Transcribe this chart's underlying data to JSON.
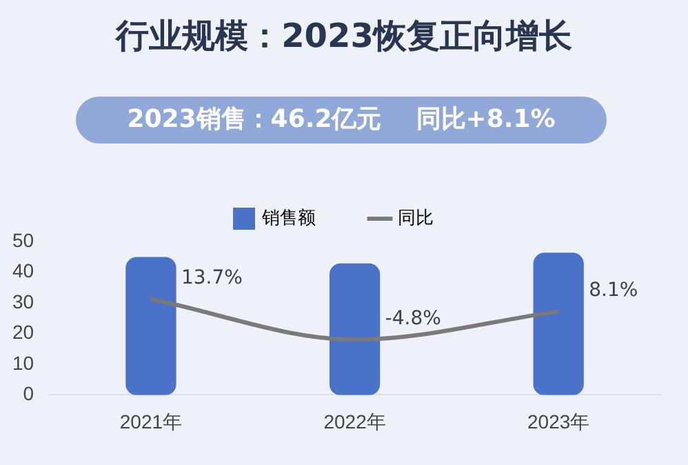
{
  "chart_data": {
    "type": "bar",
    "title": "行业规模：2023恢复正向增长",
    "subtitle": "2023销售：46.2亿元    同比+8.1%",
    "categories": [
      "2021年",
      "2022年",
      "2023年"
    ],
    "series": [
      {
        "name": "销售额",
        "color": "#4a72c9",
        "values": [
          44.8,
          42.7,
          46.2
        ]
      },
      {
        "name": "同比",
        "type": "line",
        "axis": "y2",
        "color": "#7a7a7a",
        "values": [
          13.7,
          -4.8,
          8.1
        ],
        "value_labels": [
          "13.7%",
          "-4.8%",
          "8.1%"
        ]
      }
    ],
    "ylim": [
      0,
      50
    ],
    "yticks": [
      0,
      10,
      20,
      30,
      40,
      50
    ],
    "grid": false,
    "legend": "top",
    "marker": "none"
  }
}
